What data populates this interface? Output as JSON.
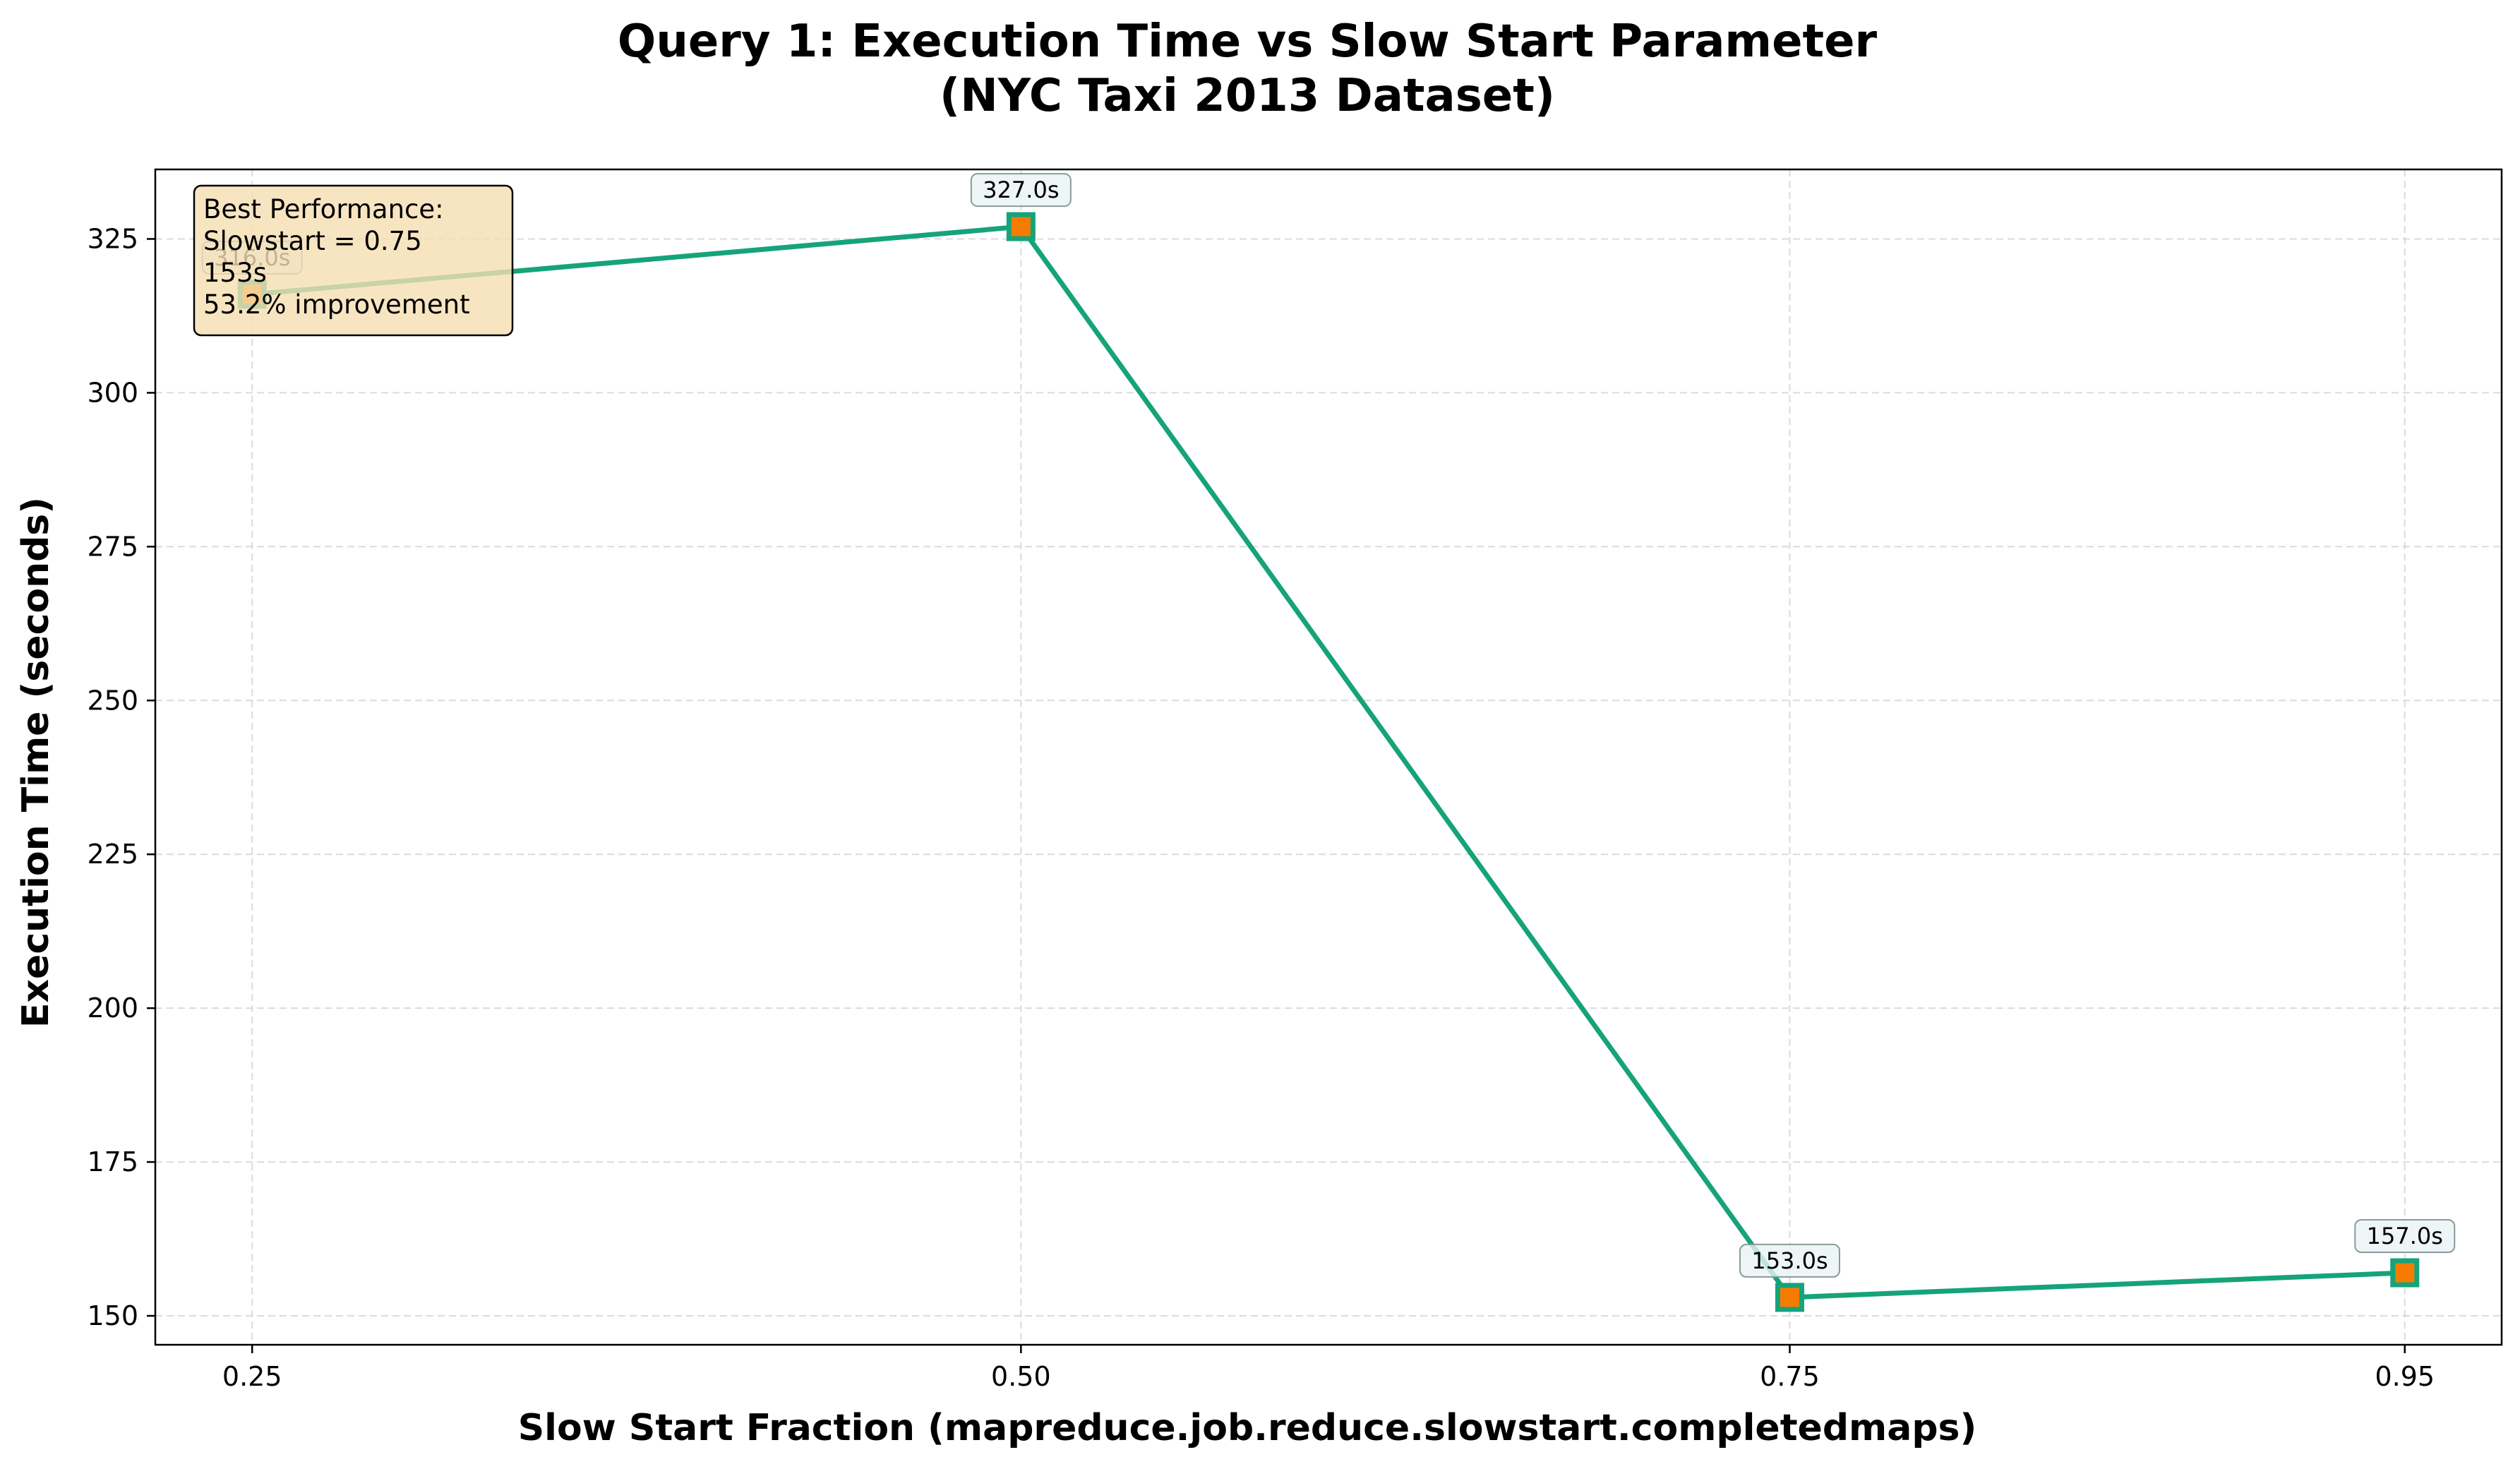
{
  "chart_data": {
    "type": "line",
    "title_lines": [
      "Query 1: Execution Time vs Slow Start Parameter",
      "(NYC Taxi 2013 Dataset)"
    ],
    "xlabel": "Slow Start Fraction (mapreduce.job.reduce.slowstart.completedmaps)",
    "ylabel": "Execution Time (seconds)",
    "categories": [
      "0.25",
      "0.50",
      "0.75",
      "0.95"
    ],
    "x": [
      0.25,
      0.5,
      0.75,
      0.95
    ],
    "series": [
      {
        "name": "Execution Time",
        "values": [
          316,
          327,
          153,
          157
        ]
      }
    ],
    "data_labels": [
      "316.0s",
      "327.0s",
      "153.0s",
      "157.0s"
    ],
    "xlim": [
      0.2185,
      0.9815
    ],
    "ylim": [
      145.3,
      336.3
    ],
    "yticks": [
      150,
      175,
      200,
      225,
      250,
      275,
      300,
      325
    ],
    "grid": true,
    "annotation": {
      "lines": [
        "Best Performance:",
        "Slowstart = 0.75",
        "153s",
        "53.2% improvement"
      ],
      "placement": "top-left"
    },
    "colors": {
      "line": "#16a37a",
      "marker_fill": "#f57c00",
      "marker_edge": "#16a37a",
      "annotation_bg": "#f5deb3",
      "label_bg": "#e8f2f4"
    }
  }
}
